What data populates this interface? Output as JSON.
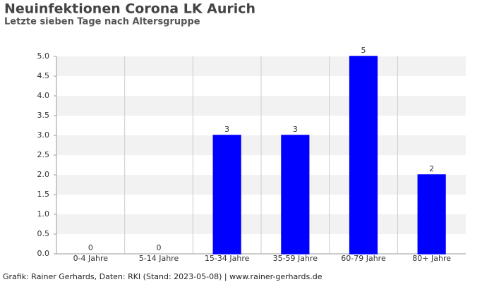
{
  "chart_data": {
    "type": "bar",
    "title": "Neuinfektionen Corona LK Aurich",
    "subtitle": "Letzte sieben Tage nach Altersgruppe",
    "footer": "Grafik: Rainer Gerhards, Daten: RKI (Stand: 2023-05-08) | www.rainer-gerhards.de",
    "categories": [
      "0-4 Jahre",
      "5-14 Jahre",
      "15-34 Jahre",
      "35-59 Jahre",
      "60-79 Jahre",
      "80+ Jahre"
    ],
    "values": [
      0,
      0,
      3,
      3,
      5,
      2
    ],
    "color": "#0000ff",
    "ylim": [
      0,
      5
    ],
    "yticks": [
      {
        "value": 0,
        "label": "0.0"
      },
      {
        "value": 0.5,
        "label": "0.5"
      },
      {
        "value": 1,
        "label": "1.0"
      },
      {
        "value": 1.5,
        "label": "1.5"
      },
      {
        "value": 2,
        "label": "2.0"
      },
      {
        "value": 2.5,
        "label": "2.5"
      },
      {
        "value": 3,
        "label": "3.0"
      },
      {
        "value": 3.5,
        "label": "3.5"
      },
      {
        "value": 4,
        "label": "4.0"
      },
      {
        "value": 4.5,
        "label": "4.5"
      },
      {
        "value": 5,
        "label": "5.0"
      }
    ],
    "grid": true
  }
}
